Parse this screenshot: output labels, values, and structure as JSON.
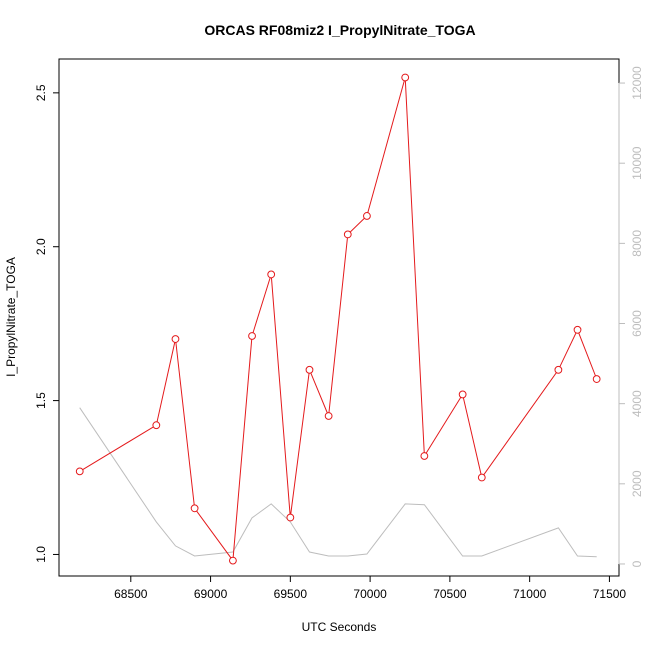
{
  "chart_data": {
    "type": "line",
    "title": "ORCAS RF08miz2 I_PropylNitrate_TOGA",
    "xlabel": "UTC Seconds",
    "ylabel": "I_PropylNitrate_TOGA",
    "xlim": [
      68050,
      71560
    ],
    "ylim": [
      0.93,
      2.61
    ],
    "y2lim": [
      -300,
      12600
    ],
    "grid": false,
    "x_ticks": [
      68500,
      69000,
      69500,
      70000,
      70500,
      71000,
      71500
    ],
    "y_ticks": [
      1.0,
      1.5,
      2.0,
      2.5
    ],
    "y2_ticks": [
      0,
      2000,
      4000,
      6000,
      8000,
      10000,
      12000
    ],
    "series": [
      {
        "color": "#e41a1c",
        "markers": true,
        "axis": "left",
        "x": [
          68180,
          68660,
          68780,
          68900,
          69140,
          69260,
          69380,
          69500,
          69620,
          69740,
          69860,
          69980,
          70220,
          70340,
          70580,
          70700,
          71180,
          71300,
          71420
        ],
        "y": [
          1.27,
          1.42,
          1.7,
          1.15,
          0.98,
          1.71,
          1.91,
          1.12,
          1.6,
          1.45,
          2.04,
          2.1,
          2.55,
          1.32,
          1.52,
          1.25,
          1.6,
          1.73,
          1.57
        ]
      },
      {
        "color": "#bdbdbd",
        "markers": false,
        "axis": "right",
        "x": [
          68180,
          68660,
          68780,
          68900,
          69140,
          69260,
          69380,
          69500,
          69620,
          69740,
          69860,
          69980,
          70220,
          70340,
          70580,
          70700,
          71180,
          71300,
          71420
        ],
        "y": [
          3900,
          1050,
          450,
          200,
          300,
          1150,
          1500,
          1050,
          300,
          200,
          200,
          250,
          1500,
          1480,
          200,
          200,
          900,
          200,
          180
        ]
      }
    ]
  }
}
